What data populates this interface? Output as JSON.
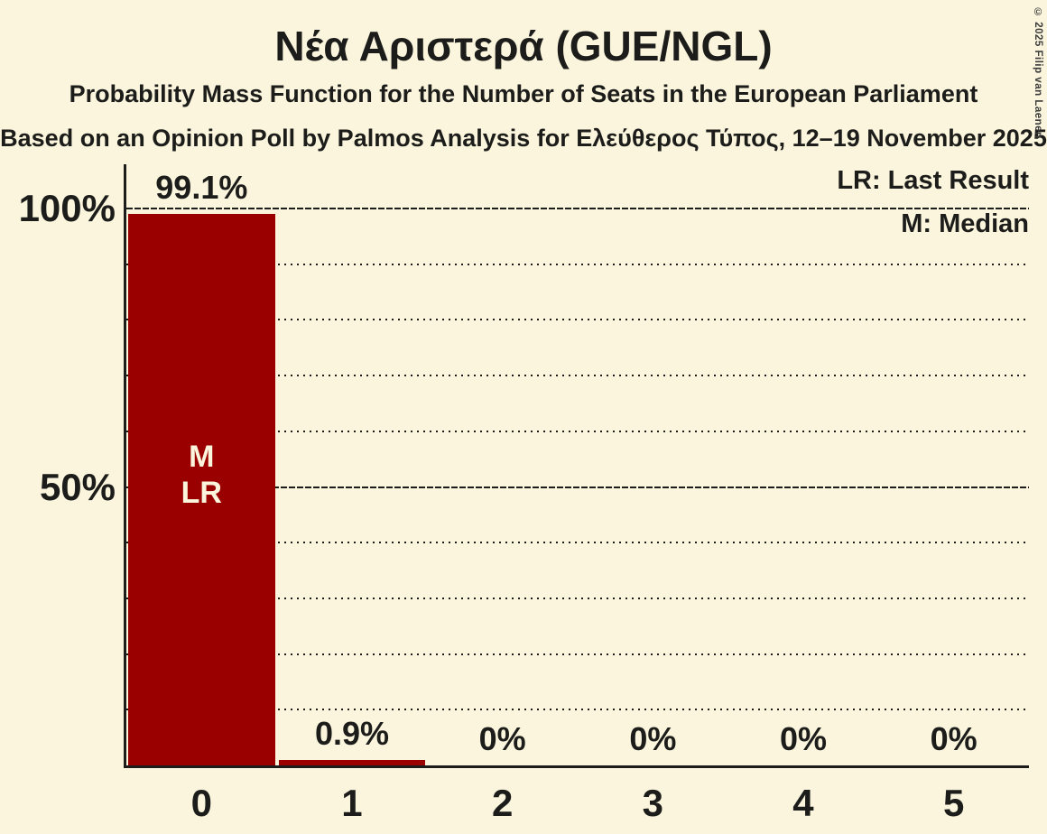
{
  "header": {
    "title": "Νέα Αριστερά (GUE/NGL)",
    "subtitle": "Probability Mass Function for the Number of Seats in the European Parliament",
    "source_line": "Based on an Opinion Poll by Palmos Analysis for Ελεύθερος Τύπος, 12–19 November 2025"
  },
  "legend": {
    "last_result": "LR: Last Result",
    "median": "M: Median"
  },
  "copyright": "© 2025 Filip van Laenen",
  "colors": {
    "background": "#FAF5DC",
    "bar": "#9B0000",
    "text": "#1C1C1A",
    "bar_annotation_text": "#FAF5DC"
  },
  "chart_data": {
    "type": "bar",
    "title": "Νέα Αριστερά (GUE/NGL)",
    "xlabel": "",
    "ylabel": "",
    "categories": [
      "0",
      "1",
      "2",
      "3",
      "4",
      "5"
    ],
    "values": [
      99.1,
      0.9,
      0,
      0,
      0,
      0
    ],
    "bar_labels": [
      "99.1%",
      "0.9%",
      "0%",
      "0%",
      "0%",
      "0%"
    ],
    "ylim": [
      0,
      100
    ],
    "yticks": [
      {
        "value": 100,
        "label": "100%"
      },
      {
        "value": 50,
        "label": "50%"
      }
    ],
    "grid": {
      "dotted_pct": [
        10,
        20,
        30,
        40,
        60,
        70,
        80,
        90
      ],
      "solid_pct": [
        50,
        100
      ]
    },
    "annotations": {
      "median_bar": "0",
      "last_result_bar": "0",
      "in_bar_lines": [
        "M",
        "LR"
      ]
    }
  }
}
